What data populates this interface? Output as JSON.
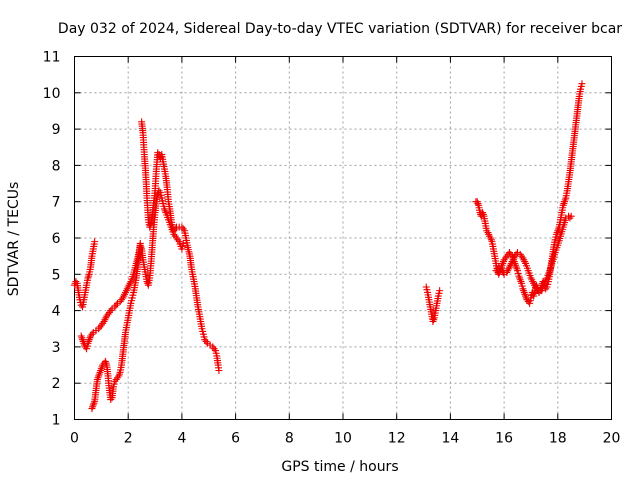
{
  "chart_data": {
    "type": "scatter",
    "title": "Day 032 of 2024, Sidereal Day-to-day VTEC variation (SDTVAR) for receiver bcar",
    "xlabel": "GPS time / hours",
    "ylabel": "SDTVAR / TECUs",
    "xlim": [
      0,
      20
    ],
    "ylim": [
      1,
      11
    ],
    "x_ticks": [
      "0",
      "2",
      "4",
      "6",
      "8",
      "10",
      "12",
      "14",
      "16",
      "18",
      "20"
    ],
    "y_ticks": [
      "1",
      "2",
      "3",
      "4",
      "5",
      "6",
      "7",
      "8",
      "9",
      "10",
      "11"
    ],
    "grid": true,
    "marker": "+",
    "color": "#ee0000",
    "series": [
      {
        "name": "SDTVAR",
        "segments": [
          [
            [
              0.0,
              4.7
            ],
            [
              0.05,
              4.8
            ],
            [
              0.1,
              4.75
            ],
            [
              0.15,
              4.5
            ],
            [
              0.2,
              4.3
            ],
            [
              0.25,
              4.15
            ],
            [
              0.3,
              4.1
            ],
            [
              0.35,
              4.3
            ],
            [
              0.4,
              4.5
            ],
            [
              0.45,
              4.7
            ],
            [
              0.5,
              4.9
            ],
            [
              0.55,
              5.0
            ],
            [
              0.6,
              5.2
            ],
            [
              0.65,
              5.5
            ],
            [
              0.7,
              5.7
            ],
            [
              0.75,
              5.9
            ]
          ],
          [
            [
              0.25,
              3.3
            ],
            [
              0.3,
              3.2
            ],
            [
              0.35,
              3.1
            ],
            [
              0.4,
              3.0
            ],
            [
              0.45,
              2.95
            ],
            [
              0.5,
              3.1
            ],
            [
              0.55,
              3.2
            ],
            [
              0.6,
              3.3
            ],
            [
              0.7,
              3.4
            ],
            [
              0.8,
              3.45
            ],
            [
              0.9,
              3.5
            ],
            [
              1.0,
              3.6
            ],
            [
              1.1,
              3.7
            ],
            [
              1.2,
              3.85
            ],
            [
              1.3,
              3.95
            ],
            [
              1.4,
              4.05
            ],
            [
              1.5,
              4.1
            ],
            [
              1.6,
              4.2
            ],
            [
              1.7,
              4.25
            ],
            [
              1.8,
              4.35
            ],
            [
              1.9,
              4.5
            ],
            [
              2.0,
              4.65
            ],
            [
              2.1,
              4.8
            ],
            [
              2.2,
              5.0
            ],
            [
              2.3,
              5.3
            ],
            [
              2.4,
              5.6
            ],
            [
              2.45,
              5.85
            ]
          ],
          [
            [
              0.65,
              1.3
            ],
            [
              0.7,
              1.4
            ],
            [
              0.75,
              1.5
            ],
            [
              0.8,
              1.8
            ],
            [
              0.85,
              2.1
            ],
            [
              0.9,
              2.2
            ],
            [
              0.95,
              2.3
            ],
            [
              1.0,
              2.4
            ],
            [
              1.05,
              2.5
            ],
            [
              1.1,
              2.55
            ],
            [
              1.15,
              2.6
            ],
            [
              1.2,
              2.5
            ],
            [
              1.25,
              2.2
            ],
            [
              1.3,
              1.8
            ],
            [
              1.35,
              1.55
            ],
            [
              1.4,
              1.6
            ],
            [
              1.45,
              1.9
            ],
            [
              1.5,
              2.05
            ],
            [
              1.55,
              2.1
            ],
            [
              1.6,
              2.15
            ],
            [
              1.65,
              2.2
            ],
            [
              1.7,
              2.3
            ],
            [
              1.75,
              2.5
            ],
            [
              1.8,
              2.8
            ],
            [
              1.85,
              3.1
            ],
            [
              1.9,
              3.4
            ],
            [
              1.95,
              3.6
            ],
            [
              2.0,
              3.8
            ],
            [
              2.05,
              4.0
            ],
            [
              2.1,
              4.2
            ],
            [
              2.15,
              4.35
            ],
            [
              2.2,
              4.5
            ],
            [
              2.25,
              4.7
            ],
            [
              2.3,
              4.9
            ],
            [
              2.35,
              5.2
            ],
            [
              2.4,
              5.5
            ],
            [
              2.45,
              5.8
            ],
            [
              2.5,
              5.7
            ],
            [
              2.55,
              5.4
            ],
            [
              2.6,
              5.2
            ],
            [
              2.65,
              5.0
            ],
            [
              2.7,
              4.8
            ],
            [
              2.75,
              4.7
            ],
            [
              2.8,
              4.9
            ],
            [
              2.85,
              5.3
            ],
            [
              2.9,
              5.8
            ],
            [
              2.95,
              6.3
            ],
            [
              3.0,
              6.7
            ],
            [
              3.05,
              7.0
            ],
            [
              3.1,
              7.2
            ],
            [
              3.15,
              7.3
            ],
            [
              3.2,
              7.25
            ],
            [
              3.25,
              7.1
            ],
            [
              3.3,
              6.95
            ],
            [
              3.35,
              6.8
            ],
            [
              3.4,
              6.7
            ],
            [
              3.5,
              6.5
            ],
            [
              3.6,
              6.3
            ],
            [
              3.7,
              6.1
            ],
            [
              3.8,
              6.0
            ],
            [
              3.9,
              5.9
            ],
            [
              4.0,
              5.7
            ],
            [
              4.05,
              5.85
            ]
          ],
          [
            [
              2.5,
              9.2
            ],
            [
              2.55,
              8.9
            ],
            [
              2.6,
              8.3
            ],
            [
              2.65,
              7.8
            ],
            [
              2.7,
              7.1
            ],
            [
              2.75,
              6.5
            ],
            [
              2.8,
              6.3
            ],
            [
              2.85,
              6.4
            ],
            [
              2.9,
              6.6
            ],
            [
              2.95,
              6.9
            ],
            [
              3.0,
              7.3
            ],
            [
              3.05,
              7.9
            ],
            [
              3.1,
              8.35
            ],
            [
              3.15,
              8.3
            ],
            [
              3.2,
              8.2
            ],
            [
              3.25,
              8.3
            ],
            [
              3.3,
              8.1
            ],
            [
              3.35,
              7.9
            ],
            [
              3.4,
              7.7
            ],
            [
              3.45,
              7.4
            ],
            [
              3.5,
              7.0
            ],
            [
              3.55,
              6.8
            ],
            [
              3.6,
              6.5
            ],
            [
              3.65,
              6.3
            ],
            [
              3.7,
              6.2
            ],
            [
              3.75,
              6.25
            ],
            [
              3.8,
              6.3
            ],
            [
              3.9,
              6.3
            ],
            [
              4.0,
              6.3
            ],
            [
              4.1,
              6.2
            ],
            [
              4.15,
              6.0
            ],
            [
              4.2,
              5.8
            ],
            [
              4.3,
              5.5
            ],
            [
              4.35,
              5.2
            ],
            [
              4.4,
              5.0
            ],
            [
              4.45,
              4.8
            ],
            [
              4.5,
              4.6
            ],
            [
              4.55,
              4.35
            ],
            [
              4.6,
              4.1
            ],
            [
              4.65,
              3.9
            ],
            [
              4.7,
              3.7
            ],
            [
              4.75,
              3.5
            ],
            [
              4.8,
              3.35
            ],
            [
              4.85,
              3.2
            ],
            [
              4.95,
              3.1
            ],
            [
              5.05,
              3.05
            ],
            [
              5.15,
              3.0
            ],
            [
              5.25,
              2.9
            ],
            [
              5.3,
              2.75
            ],
            [
              5.35,
              2.5
            ],
            [
              5.38,
              2.35
            ]
          ],
          [
            [
              13.1,
              4.65
            ],
            [
              13.15,
              4.5
            ],
            [
              13.2,
              4.3
            ],
            [
              13.25,
              4.1
            ],
            [
              13.3,
              3.9
            ],
            [
              13.35,
              3.7
            ],
            [
              13.4,
              3.8
            ],
            [
              13.45,
              4.0
            ],
            [
              13.5,
              4.2
            ],
            [
              13.55,
              4.4
            ],
            [
              13.6,
              4.55
            ]
          ],
          [
            [
              14.95,
              7.0
            ],
            [
              15.0,
              7.0
            ],
            [
              15.05,
              6.9
            ],
            [
              15.1,
              6.7
            ],
            [
              15.15,
              6.6
            ],
            [
              15.2,
              6.7
            ],
            [
              15.25,
              6.6
            ],
            [
              15.3,
              6.4
            ],
            [
              15.35,
              6.2
            ],
            [
              15.4,
              6.15
            ],
            [
              15.45,
              6.05
            ],
            [
              15.5,
              6.0
            ],
            [
              15.55,
              5.9
            ],
            [
              15.6,
              5.7
            ],
            [
              15.65,
              5.5
            ],
            [
              15.7,
              5.3
            ],
            [
              15.75,
              5.1
            ],
            [
              15.8,
              5.0
            ],
            [
              15.85,
              5.1
            ],
            [
              15.9,
              5.2
            ],
            [
              15.95,
              5.3
            ],
            [
              16.0,
              5.4
            ],
            [
              16.05,
              5.45
            ],
            [
              16.1,
              5.5
            ],
            [
              16.15,
              5.55
            ],
            [
              16.2,
              5.6
            ],
            [
              16.25,
              5.55
            ],
            [
              16.3,
              5.5
            ],
            [
              16.35,
              5.4
            ],
            [
              16.4,
              5.3
            ],
            [
              16.45,
              5.2
            ],
            [
              16.5,
              5.1
            ],
            [
              16.55,
              4.95
            ],
            [
              16.6,
              4.85
            ],
            [
              16.65,
              4.75
            ],
            [
              16.7,
              4.6
            ],
            [
              16.75,
              4.5
            ],
            [
              16.8,
              4.4
            ],
            [
              16.85,
              4.3
            ],
            [
              16.9,
              4.25
            ],
            [
              16.95,
              4.2
            ],
            [
              17.0,
              4.35
            ],
            [
              17.05,
              4.5
            ],
            [
              17.1,
              4.4
            ],
            [
              17.15,
              4.55
            ],
            [
              17.2,
              4.7
            ],
            [
              17.25,
              4.6
            ],
            [
              17.3,
              4.5
            ],
            [
              17.35,
              4.55
            ],
            [
              17.4,
              4.7
            ],
            [
              17.45,
              4.8
            ],
            [
              17.5,
              4.7
            ],
            [
              17.55,
              4.6
            ],
            [
              17.6,
              4.65
            ],
            [
              17.65,
              4.8
            ],
            [
              17.7,
              5.0
            ],
            [
              17.75,
              5.25
            ],
            [
              17.8,
              5.5
            ],
            [
              17.85,
              5.75
            ],
            [
              17.9,
              5.95
            ],
            [
              17.95,
              6.1
            ],
            [
              18.0,
              6.2
            ],
            [
              18.05,
              6.3
            ],
            [
              18.1,
              6.5
            ],
            [
              18.15,
              6.7
            ],
            [
              18.2,
              6.9
            ],
            [
              18.25,
              7.0
            ],
            [
              18.3,
              7.1
            ],
            [
              18.35,
              7.3
            ],
            [
              18.4,
              7.55
            ],
            [
              18.45,
              7.8
            ],
            [
              18.5,
              8.1
            ],
            [
              18.55,
              8.4
            ],
            [
              18.6,
              8.7
            ],
            [
              18.65,
              9.0
            ],
            [
              18.7,
              9.3
            ],
            [
              18.75,
              9.6
            ],
            [
              18.8,
              9.9
            ],
            [
              18.85,
              10.1
            ],
            [
              18.9,
              10.25
            ]
          ],
          [
            [
              15.7,
              5.1
            ],
            [
              15.8,
              5.2
            ],
            [
              15.9,
              5.15
            ],
            [
              16.0,
              5.0
            ],
            [
              16.1,
              5.05
            ],
            [
              16.2,
              5.2
            ],
            [
              16.3,
              5.35
            ],
            [
              16.4,
              5.5
            ],
            [
              16.5,
              5.6
            ],
            [
              16.6,
              5.55
            ],
            [
              16.7,
              5.45
            ],
            [
              16.8,
              5.3
            ],
            [
              16.9,
              5.1
            ],
            [
              17.0,
              4.9
            ],
            [
              17.1,
              4.75
            ],
            [
              17.2,
              4.6
            ],
            [
              17.3,
              4.5
            ],
            [
              17.4,
              4.55
            ],
            [
              17.5,
              4.75
            ],
            [
              17.6,
              4.9
            ],
            [
              17.7,
              5.1
            ],
            [
              17.8,
              5.35
            ],
            [
              17.9,
              5.6
            ],
            [
              18.0,
              5.8
            ],
            [
              18.1,
              6.05
            ],
            [
              18.2,
              6.3
            ],
            [
              18.3,
              6.55
            ],
            [
              18.4,
              6.6
            ],
            [
              18.45,
              6.55
            ],
            [
              18.5,
              6.6
            ]
          ]
        ]
      }
    ]
  }
}
